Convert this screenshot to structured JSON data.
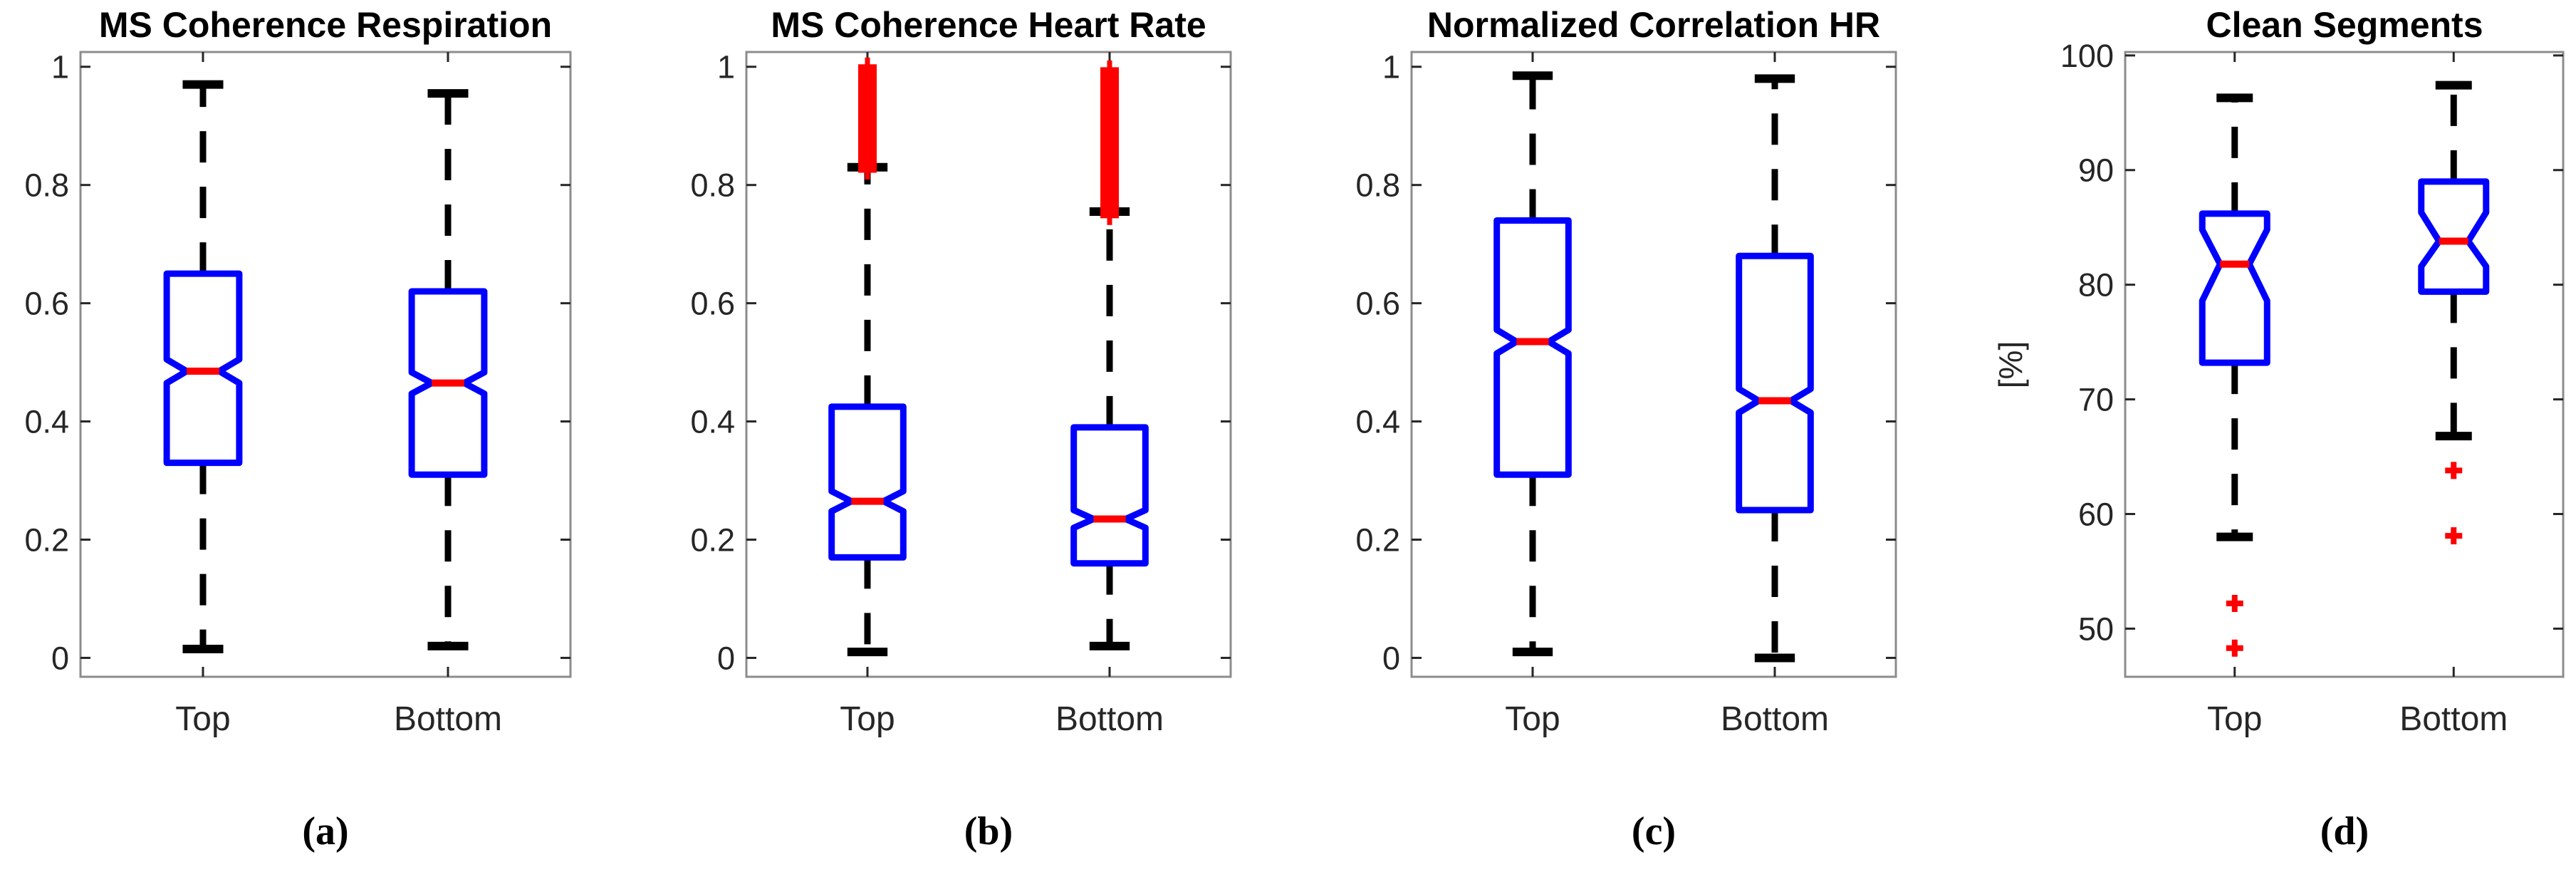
{
  "figure": {
    "background": "#ffffff"
  },
  "style": {
    "box_color": "#0000ff",
    "median_color": "#ff0000",
    "whisker_color": "#000000",
    "outlier_color": "#ff0000",
    "frame_color": "#8c8c8c",
    "tick_color": "#262626",
    "label_color": "#262626",
    "title_color": "#000000"
  },
  "chart_data": [
    {
      "type": "boxplot",
      "title": "MS Coherence Respiration",
      "caption": "(a)",
      "ylabel": "",
      "ylim": [
        -0.032,
        1.025
      ],
      "yticks": [
        0,
        0.2,
        0.4,
        0.6,
        0.8,
        1
      ],
      "ytick_labels": [
        "0",
        "0.2",
        "0.4",
        "0.6",
        "0.8",
        "1"
      ],
      "categories": [
        "Top",
        "Bottom"
      ],
      "grid": false,
      "notched": true,
      "boxes": [
        {
          "category": "Top",
          "whisker_low": 0.015,
          "q1": 0.33,
          "median": 0.485,
          "q3": 0.65,
          "whisker_high": 0.97,
          "notch_low": 0.465,
          "notch_high": 0.505,
          "outliers": []
        },
        {
          "category": "Bottom",
          "whisker_low": 0.02,
          "q1": 0.31,
          "median": 0.465,
          "q3": 0.62,
          "whisker_high": 0.955,
          "notch_low": 0.447,
          "notch_high": 0.483,
          "outliers": []
        }
      ]
    },
    {
      "type": "boxplot",
      "title": "MS Coherence Heart Rate",
      "caption": "(b)",
      "ylabel": "",
      "ylim": [
        -0.032,
        1.025
      ],
      "yticks": [
        0,
        0.2,
        0.4,
        0.6,
        0.8,
        1
      ],
      "ytick_labels": [
        "0",
        "0.2",
        "0.4",
        "0.6",
        "0.8",
        "1"
      ],
      "categories": [
        "Top",
        "Bottom"
      ],
      "grid": false,
      "notched": true,
      "boxes": [
        {
          "category": "Top",
          "whisker_low": 0.01,
          "q1": 0.17,
          "median": 0.265,
          "q3": 0.425,
          "whisker_high": 0.83,
          "notch_low": 0.248,
          "notch_high": 0.282,
          "outliers": [],
          "outlier_band": [
            0.825,
            1.0
          ]
        },
        {
          "category": "Bottom",
          "whisker_low": 0.02,
          "q1": 0.16,
          "median": 0.235,
          "q3": 0.39,
          "whisker_high": 0.755,
          "notch_low": 0.22,
          "notch_high": 0.25,
          "outliers": [],
          "outlier_band": [
            0.748,
            0.995
          ]
        }
      ]
    },
    {
      "type": "boxplot",
      "title": "Normalized Correlation HR",
      "caption": "(c)",
      "ylabel": "",
      "ylim": [
        -0.032,
        1.025
      ],
      "yticks": [
        0,
        0.2,
        0.4,
        0.6,
        0.8,
        1
      ],
      "ytick_labels": [
        "0",
        "0.2",
        "0.4",
        "0.6",
        "0.8",
        "1"
      ],
      "categories": [
        "Top",
        "Bottom"
      ],
      "grid": false,
      "notched": true,
      "boxes": [
        {
          "category": "Top",
          "whisker_low": 0.01,
          "q1": 0.31,
          "median": 0.535,
          "q3": 0.74,
          "whisker_high": 0.985,
          "notch_low": 0.515,
          "notch_high": 0.555,
          "outliers": []
        },
        {
          "category": "Bottom",
          "whisker_low": 0.0,
          "q1": 0.25,
          "median": 0.435,
          "q3": 0.68,
          "whisker_high": 0.98,
          "notch_low": 0.415,
          "notch_high": 0.455,
          "outliers": []
        }
      ]
    },
    {
      "type": "boxplot",
      "title": "Clean Segments",
      "caption": "(d)",
      "ylabel": "[%]",
      "ylim": [
        45.8,
        100.3
      ],
      "yticks": [
        50,
        60,
        70,
        80,
        90,
        100
      ],
      "ytick_labels": [
        "50",
        "60",
        "70",
        "80",
        "90",
        "100"
      ],
      "categories": [
        "Top",
        "Bottom"
      ],
      "grid": false,
      "notched": true,
      "boxes": [
        {
          "category": "Top",
          "whisker_low": 58.0,
          "q1": 73.2,
          "median": 81.8,
          "q3": 86.2,
          "whisker_high": 96.3,
          "notch_low": 78.6,
          "notch_high": 84.8,
          "outliers": [
            52.2,
            48.3
          ]
        },
        {
          "category": "Bottom",
          "whisker_low": 66.8,
          "q1": 79.4,
          "median": 83.8,
          "q3": 89.0,
          "whisker_high": 97.4,
          "notch_low": 81.6,
          "notch_high": 86.3,
          "outliers": [
            63.8,
            58.1
          ]
        }
      ]
    }
  ]
}
